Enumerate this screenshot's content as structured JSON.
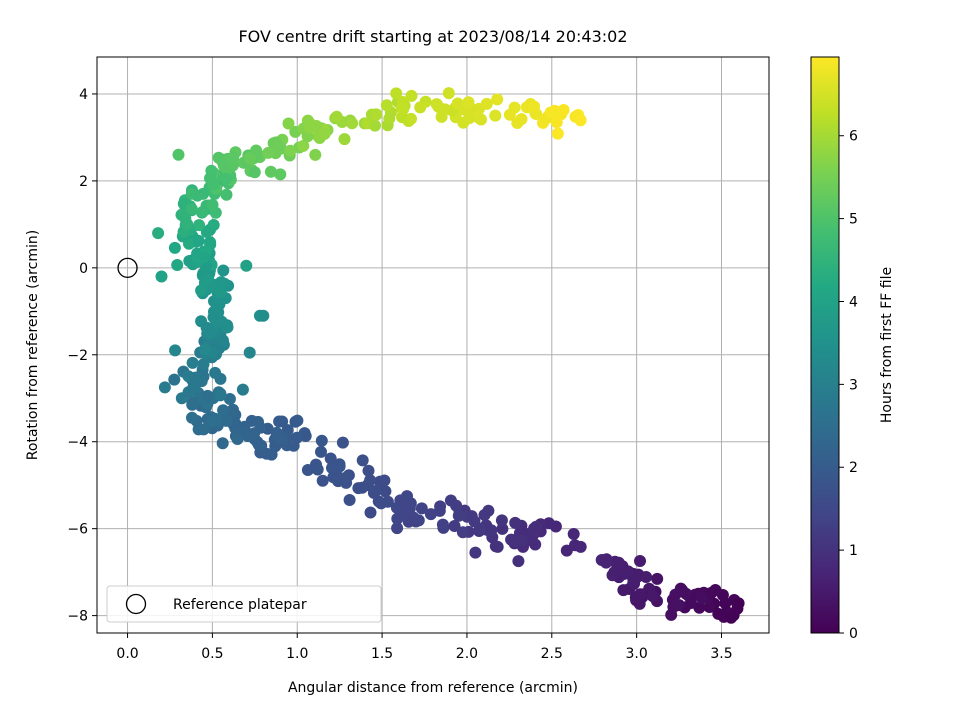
{
  "chart_data": {
    "type": "scatter",
    "title": "FOV centre drift starting at 2023/08/14 20:43:02",
    "xlabel": "Angular distance from reference (arcmin)",
    "ylabel": "Rotation from reference (arcmin)",
    "colorbar_label": "Hours from first FF file",
    "xlim": [
      -0.18,
      3.78
    ],
    "ylim": [
      -8.4,
      4.85
    ],
    "clim": [
      0,
      6.95
    ],
    "colormap": "viridis",
    "grid": true,
    "legend": {
      "location": "lower-left",
      "entries": [
        "Reference platepar"
      ]
    },
    "xticks": [
      "0.0",
      "0.5",
      "1.0",
      "1.5",
      "2.0",
      "2.5",
      "3.0",
      "3.5"
    ],
    "xtick_values": [
      0,
      0.5,
      1,
      1.5,
      2,
      2.5,
      3,
      3.5
    ],
    "yticks": [
      "4",
      "2",
      "0",
      "−2",
      "−4",
      "−6",
      "−8"
    ],
    "ytick_values": [
      4,
      2,
      0,
      -2,
      -4,
      -6,
      -8
    ],
    "cticks": [
      "0",
      "1",
      "2",
      "3",
      "4",
      "5",
      "6"
    ],
    "ctick_values": [
      0,
      1,
      2,
      3,
      4,
      5,
      6
    ],
    "reference": {
      "x": 0,
      "y": 0
    },
    "path": [
      [
        3.62,
        -7.8,
        0.0
      ],
      [
        3.45,
        -7.68,
        0.12
      ],
      [
        3.33,
        -7.65,
        0.22
      ],
      [
        3.15,
        -7.6,
        0.32
      ],
      [
        3.0,
        -7.3,
        0.45
      ],
      [
        2.95,
        -7.0,
        0.55
      ],
      [
        2.9,
        -6.9,
        0.62
      ],
      [
        2.42,
        -6.1,
        0.82
      ],
      [
        2.3,
        -6.3,
        0.95
      ],
      [
        2.15,
        -6.0,
        1.05
      ],
      [
        2.02,
        -5.75,
        1.18
      ],
      [
        1.85,
        -5.8,
        1.3
      ],
      [
        1.65,
        -5.5,
        1.45
      ],
      [
        1.5,
        -5.2,
        1.58
      ],
      [
        1.35,
        -4.9,
        1.7
      ],
      [
        1.2,
        -4.65,
        1.8
      ],
      [
        1.0,
        -3.85,
        1.95
      ],
      [
        0.88,
        -4.1,
        2.05
      ],
      [
        0.72,
        -3.8,
        2.2
      ],
      [
        0.55,
        -3.6,
        2.35
      ],
      [
        0.48,
        -3.2,
        2.5
      ],
      [
        0.42,
        -2.6,
        2.7
      ],
      [
        0.46,
        -2.1,
        2.9
      ],
      [
        0.5,
        -1.6,
        3.15
      ],
      [
        0.55,
        -1.1,
        3.4
      ],
      [
        0.5,
        -0.6,
        3.6
      ],
      [
        0.45,
        -0.1,
        3.8
      ],
      [
        0.42,
        0.4,
        4.05
      ],
      [
        0.38,
        0.9,
        4.3
      ],
      [
        0.42,
        1.4,
        4.55
      ],
      [
        0.5,
        1.9,
        4.85
      ],
      [
        0.62,
        2.3,
        5.1
      ],
      [
        0.78,
        2.55,
        5.3
      ],
      [
        0.95,
        2.9,
        5.55
      ],
      [
        1.1,
        3.15,
        5.75
      ],
      [
        1.3,
        3.35,
        5.95
      ],
      [
        1.5,
        3.55,
        6.15
      ],
      [
        1.72,
        3.7,
        6.35
      ],
      [
        1.95,
        3.7,
        6.5
      ],
      [
        2.2,
        3.65,
        6.65
      ],
      [
        2.45,
        3.6,
        6.8
      ],
      [
        2.65,
        3.5,
        6.95
      ]
    ],
    "extra_points": [
      [
        0.2,
        -0.2,
        4.0
      ],
      [
        0.78,
        -1.1,
        3.45
      ],
      [
        0.32,
        -3.0,
        2.8
      ],
      [
        0.72,
        -1.95,
        3.2
      ],
      [
        0.22,
        -2.75,
        2.85
      ],
      [
        0.28,
        -1.9,
        3.2
      ],
      [
        0.7,
        0.05,
        3.95
      ],
      [
        0.8,
        -1.1,
        3.4
      ],
      [
        2.05,
        -6.55,
        1.1
      ],
      [
        1.15,
        -4.9,
        1.75
      ],
      [
        0.18,
        0.8,
        4.3
      ],
      [
        0.75,
        2.2,
        5.1
      ],
      [
        0.3,
        2.6,
        5.05
      ],
      [
        0.68,
        -2.8,
        2.9
      ],
      [
        0.9,
        2.15,
        5.2
      ]
    ]
  }
}
